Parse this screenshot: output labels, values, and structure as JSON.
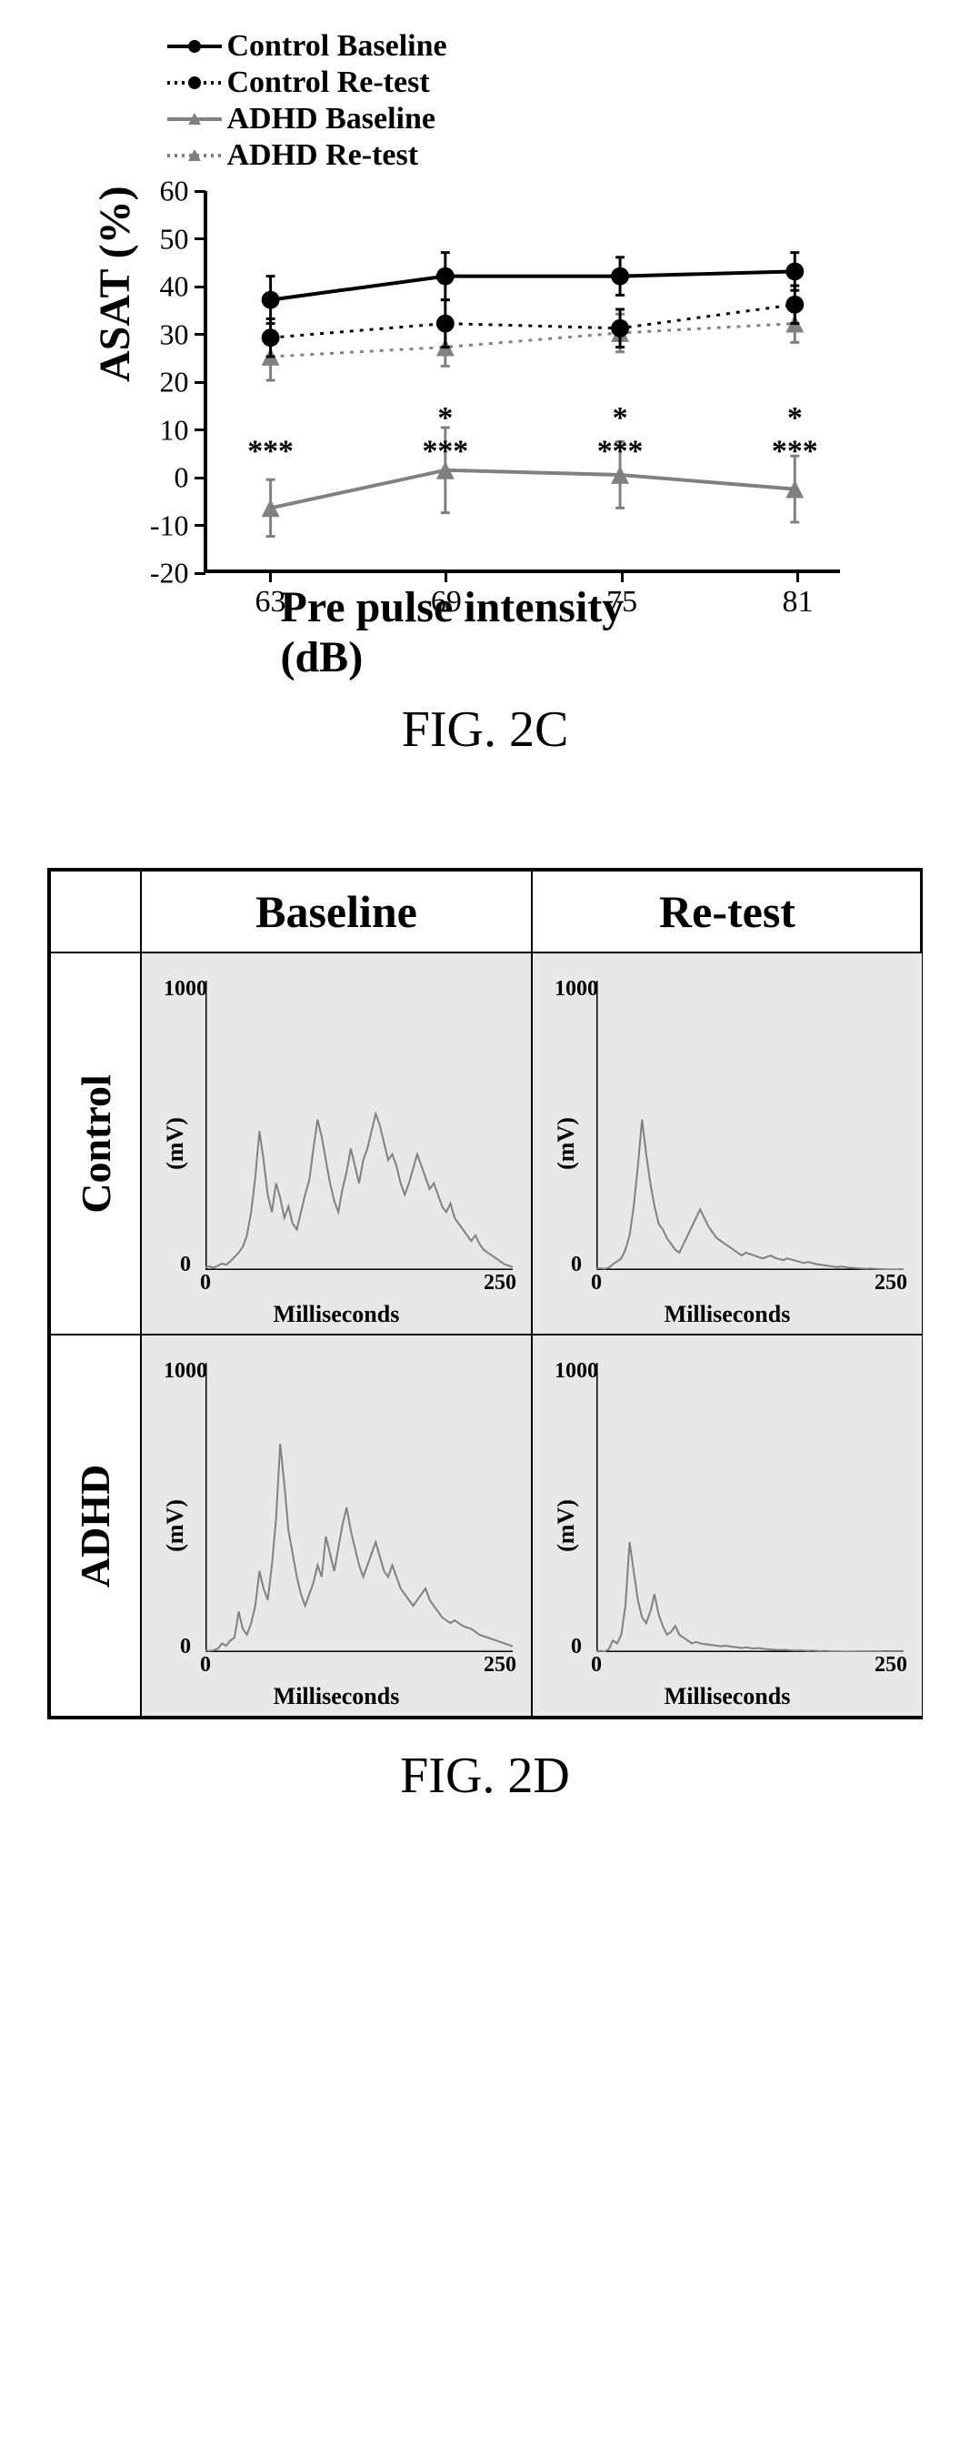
{
  "fig2c": {
    "caption": "FIG. 2C",
    "type": "line",
    "ylabel": "ASAT (%)",
    "xlabel": "Pre pulse intensity (dB)",
    "x_categories": [
      63,
      69,
      75,
      81
    ],
    "ylim": [
      -20,
      60
    ],
    "ytick_step": 10,
    "yticks": [
      -20,
      -10,
      0,
      10,
      20,
      30,
      40,
      50,
      60
    ],
    "axis_color": "#000000",
    "background_color": "#ffffff",
    "line_width_solid": 4,
    "line_width_dotted": 3,
    "marker_size": 10,
    "errorbar_cap": 10,
    "legend": [
      {
        "label": "Control Baseline",
        "color": "#000000",
        "dash": "solid",
        "marker": "circle"
      },
      {
        "label": "Control Re-test",
        "color": "#000000",
        "dash": "dotted",
        "marker": "circle"
      },
      {
        "label": "ADHD Baseline",
        "color": "#808080",
        "dash": "solid",
        "marker": "triangle"
      },
      {
        "label": "ADHD Re-test",
        "color": "#808080",
        "dash": "dotted",
        "marker": "triangle"
      }
    ],
    "series": {
      "control_baseline": {
        "y": [
          37,
          42,
          42,
          43
        ],
        "err": [
          5,
          5,
          4,
          4
        ],
        "color": "#000000",
        "dash": "solid",
        "marker": "circle"
      },
      "control_retest": {
        "y": [
          29,
          32,
          31,
          36
        ],
        "err": [
          4,
          5,
          4,
          4
        ],
        "color": "#000000",
        "dash": "dotted",
        "marker": "circle"
      },
      "adhd_baseline": {
        "y": [
          -7,
          1,
          0,
          -3
        ],
        "err": [
          6,
          9,
          7,
          7
        ],
        "color": "#808080",
        "dash": "solid",
        "marker": "triangle"
      },
      "adhd_retest": {
        "y": [
          25,
          27,
          30,
          32
        ],
        "err": [
          5,
          4,
          4,
          4
        ],
        "color": "#808080",
        "dash": "dotted",
        "marker": "triangle"
      }
    },
    "significance_upper": [
      "",
      "*",
      "*",
      "*"
    ],
    "significance_lower": [
      "***",
      "***",
      "***",
      "***"
    ],
    "sig_upper_y": 10,
    "sig_lower_y": 3
  },
  "fig2d": {
    "caption": "FIG. 2D",
    "type": "waveform-grid",
    "col_headers": [
      "Baseline",
      "Re-test"
    ],
    "row_headers": [
      "Control",
      "ADHD"
    ],
    "panel": {
      "ylabel": "(mV)",
      "xlabel": "Milliseconds",
      "xlim": [
        0,
        250
      ],
      "ylim": [
        0,
        1000
      ],
      "xtick_labels": [
        "0",
        "250"
      ],
      "ytick_labels": [
        "0",
        "1000"
      ],
      "bg_color": "#e8e8e8",
      "signal_color": "#808080",
      "axis_color": "#000000",
      "label_fontsize": 26,
      "tick_fontsize": 24
    },
    "signals": {
      "control_baseline": [
        10,
        12,
        8,
        15,
        22,
        18,
        30,
        45,
        60,
        80,
        120,
        200,
        320,
        480,
        380,
        260,
        200,
        300,
        250,
        180,
        220,
        160,
        140,
        200,
        260,
        310,
        420,
        520,
        460,
        380,
        300,
        240,
        200,
        280,
        340,
        420,
        360,
        300,
        380,
        420,
        480,
        540,
        500,
        440,
        380,
        400,
        360,
        300,
        260,
        300,
        350,
        400,
        360,
        320,
        280,
        300,
        260,
        220,
        200,
        230,
        180,
        160,
        140,
        120,
        100,
        120,
        90,
        70,
        60,
        50,
        40,
        30,
        20,
        15,
        10
      ],
      "control_retest": [
        5,
        6,
        4,
        8,
        20,
        30,
        40,
        70,
        120,
        220,
        360,
        520,
        400,
        300,
        220,
        160,
        140,
        110,
        90,
        70,
        60,
        90,
        120,
        150,
        180,
        210,
        180,
        150,
        130,
        110,
        100,
        90,
        80,
        70,
        60,
        50,
        60,
        55,
        50,
        45,
        40,
        45,
        50,
        42,
        38,
        34,
        40,
        36,
        32,
        28,
        24,
        28,
        24,
        20,
        18,
        16,
        14,
        12,
        10,
        12,
        10,
        8,
        7,
        6,
        5,
        4,
        5,
        4,
        3,
        3,
        2,
        2,
        2,
        1,
        1
      ],
      "adhd_baseline": [
        5,
        4,
        6,
        12,
        30,
        22,
        40,
        50,
        140,
        80,
        60,
        100,
        160,
        280,
        220,
        180,
        300,
        460,
        720,
        580,
        420,
        340,
        260,
        200,
        160,
        200,
        240,
        300,
        260,
        400,
        340,
        280,
        360,
        440,
        500,
        420,
        360,
        300,
        260,
        300,
        340,
        380,
        330,
        280,
        260,
        300,
        260,
        220,
        200,
        180,
        160,
        180,
        200,
        220,
        180,
        160,
        140,
        120,
        110,
        100,
        110,
        100,
        90,
        85,
        80,
        70,
        60,
        55,
        50,
        45,
        40,
        35,
        30,
        25,
        20
      ],
      "adhd_retest": [
        3,
        4,
        2,
        10,
        40,
        30,
        60,
        160,
        380,
        280,
        180,
        120,
        100,
        140,
        200,
        130,
        90,
        60,
        70,
        90,
        60,
        50,
        40,
        30,
        35,
        30,
        28,
        26,
        24,
        22,
        20,
        22,
        20,
        18,
        16,
        14,
        16,
        14,
        12,
        14,
        12,
        10,
        9,
        8,
        7,
        8,
        7,
        6,
        5,
        6,
        5,
        4,
        5,
        4,
        3,
        4,
        3,
        2,
        3,
        2,
        2,
        1,
        2,
        1,
        1,
        1,
        1,
        0,
        1,
        0,
        0,
        0,
        0,
        0,
        0
      ]
    }
  }
}
